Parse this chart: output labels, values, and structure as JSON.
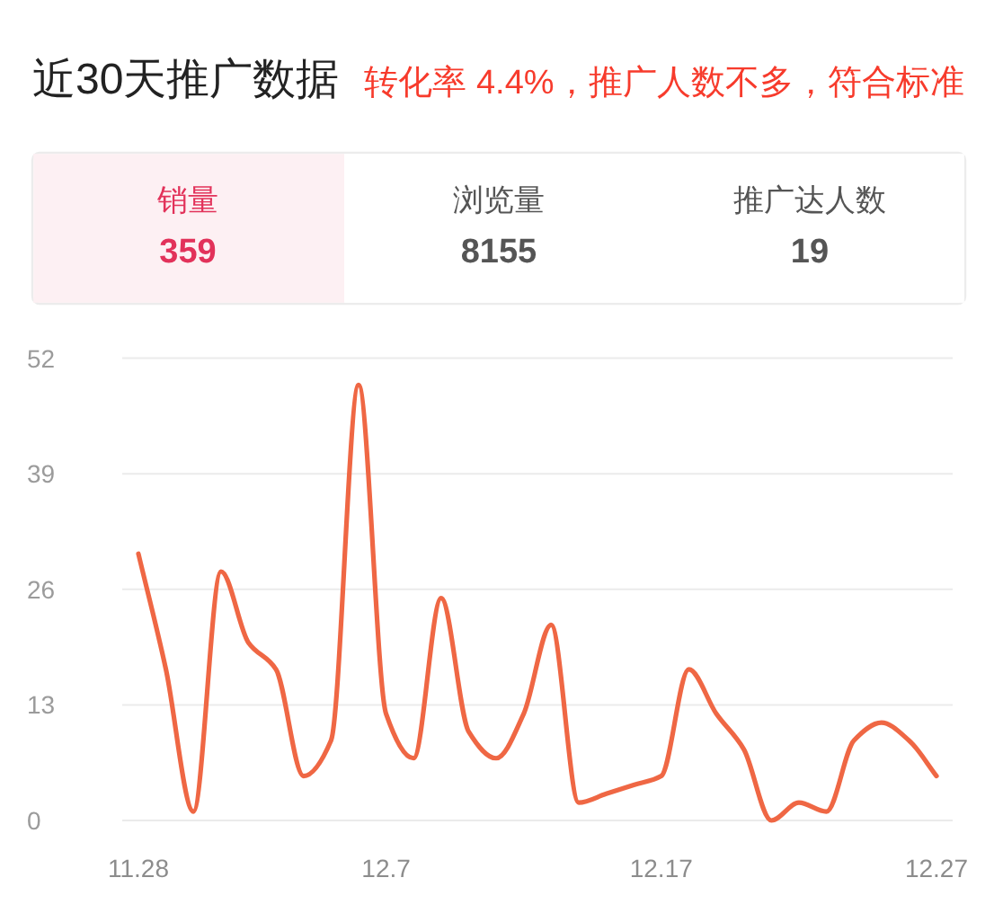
{
  "chart_data": [
    {
      "type": "other",
      "title": "近30天推广数据",
      "subtitle": "转化率 4.4%，推广人数不多，符合标准",
      "categories": [
        "销量",
        "浏览量",
        "推广达人数"
      ],
      "values": [
        359,
        8155,
        19
      ],
      "colors": [
        "#fdf0f3",
        "#ffffff",
        "#ffffff"
      ],
      "data_labels": true
    },
    {
      "type": "line",
      "categories": [
        "11.28",
        null,
        null,
        null,
        null,
        null,
        null,
        null,
        null,
        "12.7",
        null,
        null,
        null,
        null,
        null,
        null,
        null,
        null,
        null,
        "12.17",
        null,
        null,
        null,
        null,
        null,
        null,
        null,
        null,
        null,
        "12.27"
      ],
      "values": [
        30,
        17,
        1,
        28,
        20,
        17,
        5,
        9,
        49,
        12,
        7,
        25,
        10,
        7,
        12,
        22,
        2,
        3,
        4,
        5,
        17,
        12,
        8,
        0,
        2,
        1,
        9,
        11,
        9,
        5
      ],
      "color": "#ef6744",
      "ylim": [
        0,
        52
      ],
      "yticks": [
        0,
        13,
        26,
        39,
        52
      ],
      "grid": "y"
    }
  ]
}
